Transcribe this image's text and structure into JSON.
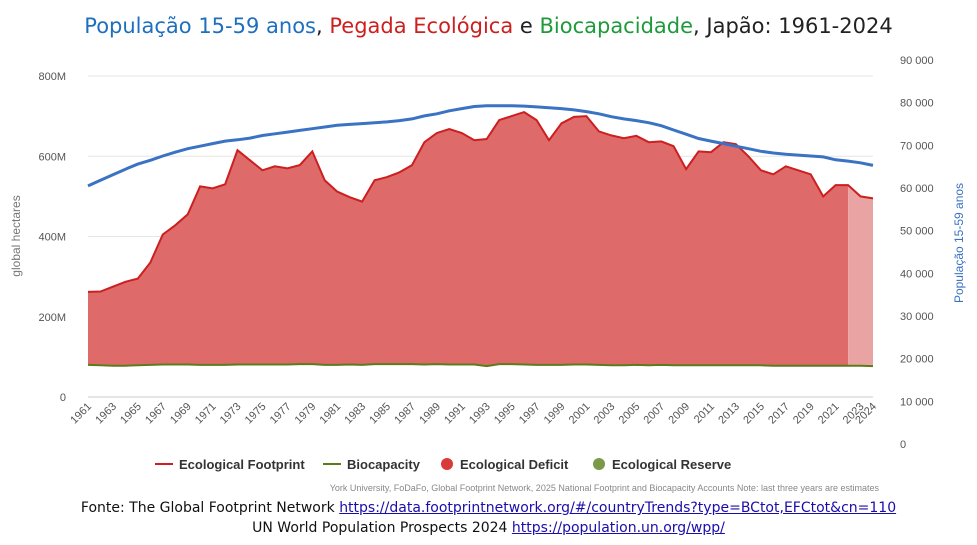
{
  "title_parts": [
    {
      "text": "População 15-59 anos",
      "color": "#1f6fbf"
    },
    {
      "text": ", ",
      "color": "#222222"
    },
    {
      "text": "Pegada Ecológica",
      "color": "#cc1f1f"
    },
    {
      "text": " e ",
      "color": "#222222"
    },
    {
      "text": "Biocapacidade",
      "color": "#1e9a3c"
    },
    {
      "text": ", Japão: 1961-2024",
      "color": "#222222"
    }
  ],
  "note": "York University, FoDaFo, Global Footprint Network, 2025 National Footprint and Biocapacity Accounts Note: last three years are estimates",
  "sources": [
    {
      "prefix": "Fonte: The Global Footprint Network ",
      "link": "https://data.footprintnetwork.org/#/countryTrends?type=BCtot,EFCtot&cn=110"
    },
    {
      "prefix": "UN World Population Prospects 2024 ",
      "link": "https://population.un.org/wpp/"
    }
  ],
  "colors": {
    "footprint": "#cc1f1f",
    "deficit_fill": "#df6a6a",
    "estimate_fill": "#eaa3a3",
    "biocapacity": "#5a7d1a",
    "reserve": "#7a9a4a",
    "population": "#3a72c4",
    "grid": "#e6e6e6"
  },
  "chart_data": {
    "type": "area",
    "x": [
      1961,
      1962,
      1963,
      1964,
      1965,
      1966,
      1967,
      1968,
      1969,
      1970,
      1971,
      1972,
      1973,
      1974,
      1975,
      1976,
      1977,
      1978,
      1979,
      1980,
      1981,
      1982,
      1983,
      1984,
      1985,
      1986,
      1987,
      1988,
      1989,
      1990,
      1991,
      1992,
      1993,
      1994,
      1995,
      1996,
      1997,
      1998,
      1999,
      2000,
      2001,
      2002,
      2003,
      2004,
      2005,
      2006,
      2007,
      2008,
      2009,
      2010,
      2011,
      2012,
      2013,
      2014,
      2015,
      2016,
      2017,
      2018,
      2019,
      2020,
      2021,
      2022,
      2023,
      2024
    ],
    "x_tick_labels": [
      "1961",
      "1963",
      "1965",
      "1967",
      "1969",
      "1971",
      "1973",
      "1975",
      "1977",
      "1979",
      "1981",
      "1983",
      "1985",
      "1987",
      "1989",
      "1991",
      "1993",
      "1995",
      "1997",
      "1999",
      "2001",
      "2003",
      "2005",
      "2007",
      "2009",
      "2011",
      "2013",
      "2015",
      "2017",
      "2019",
      "2021",
      "2023",
      "2024"
    ],
    "estimates_from": 2022,
    "y_left": {
      "label": "global hectares",
      "range": [
        0,
        800000000
      ],
      "tick_labels": [
        "0",
        "200M",
        "400M",
        "600M",
        "800M"
      ]
    },
    "y_right": {
      "label": "População 15-59 anos",
      "range": [
        0,
        90000
      ],
      "tick_labels": [
        "0",
        "10 000",
        "20 000",
        "30 000",
        "40 000",
        "50 000",
        "60 000",
        "70 000",
        "80 000",
        "90 000"
      ]
    },
    "series": [
      {
        "name": "Ecological Footprint",
        "axis": "left",
        "values": [
          262,
          263,
          275,
          287,
          295,
          335,
          405,
          428,
          455,
          525,
          520,
          530,
          615,
          590,
          565,
          575,
          570,
          578,
          612,
          540,
          512,
          498,
          487,
          540,
          548,
          560,
          578,
          635,
          658,
          668,
          658,
          640,
          643,
          690,
          700,
          710,
          690,
          640,
          682,
          698,
          700,
          662,
          652,
          645,
          651,
          635,
          637,
          625,
          568,
          612,
          610,
          635,
          630,
          600,
          565,
          555,
          575,
          565,
          555,
          500,
          528,
          528,
          500,
          495
        ]
      },
      {
        "name": "Biocapacity",
        "axis": "left",
        "values": [
          80,
          79,
          78,
          78,
          79,
          80,
          81,
          81,
          81,
          80,
          80,
          80,
          81,
          81,
          81,
          81,
          81,
          82,
          82,
          80,
          80,
          81,
          80,
          82,
          82,
          82,
          82,
          81,
          82,
          81,
          81,
          81,
          77,
          82,
          82,
          81,
          80,
          80,
          80,
          81,
          81,
          80,
          79,
          79,
          80,
          79,
          80,
          79,
          79,
          79,
          79,
          79,
          79,
          79,
          79,
          78,
          78,
          78,
          78,
          78,
          78,
          78,
          78,
          77
        ]
      },
      {
        "name": "População 15-59 anos",
        "axis": "right",
        "values": [
          60500,
          61800,
          63100,
          64400,
          65600,
          66500,
          67500,
          68400,
          69200,
          69800,
          70400,
          71000,
          71300,
          71700,
          72300,
          72700,
          73100,
          73500,
          73900,
          74300,
          74700,
          74900,
          75100,
          75300,
          75500,
          75800,
          76200,
          76900,
          77400,
          78100,
          78600,
          79100,
          79300,
          79300,
          79300,
          79200,
          79000,
          78800,
          78600,
          78300,
          77900,
          77400,
          76700,
          76200,
          75800,
          75300,
          74600,
          73600,
          72600,
          71600,
          71000,
          70400,
          69800,
          69200,
          68600,
          68200,
          67900,
          67700,
          67500,
          67300,
          66600,
          66300,
          65900,
          65300
        ]
      }
    ],
    "legend": [
      "Ecological Footprint",
      "Biocapacity",
      "Ecological Deficit",
      "Ecological Reserve"
    ],
    "legend_position": "bottom",
    "grid": true
  }
}
